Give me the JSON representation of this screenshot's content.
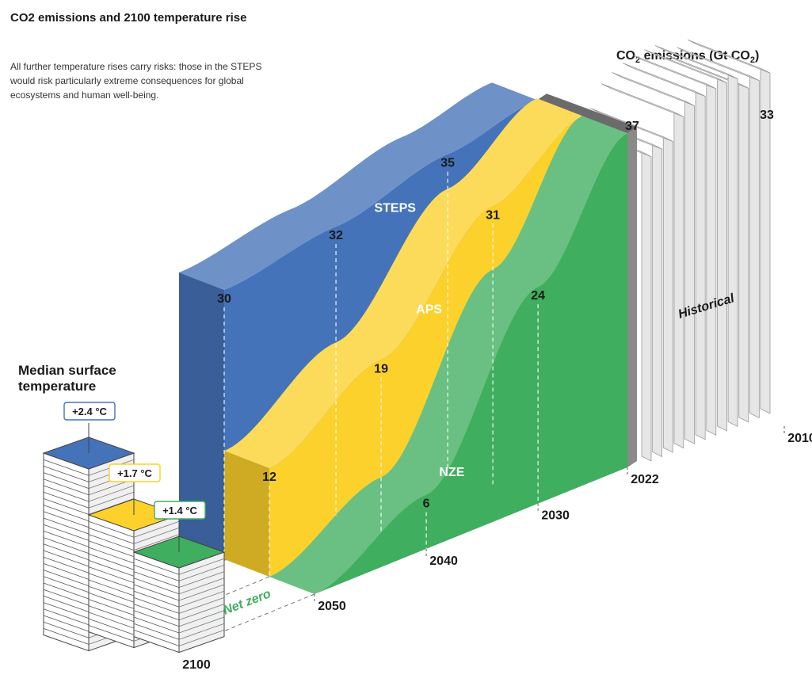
{
  "title": "CO2 emissions and 2100 temperature rise",
  "subtitle": "All further temperature rises carry risks: those in the STEPS would risk particularly extreme consequences for global ecosystems and human well-being.",
  "temperature_panel": {
    "title": "Median surface temperature",
    "year_label": "2100"
  },
  "unit_label": {
    "prefix": "CO",
    "sub": "2",
    "mid": " emissions (Gt CO",
    "sub2": "2",
    "suffix": ")"
  },
  "colors": {
    "steps": "#4573b9",
    "aps": "#fdd12b",
    "nze": "#3fae5f",
    "historical": "#f4f4f4"
  },
  "chart_data": {
    "type": "area",
    "x_ticks": [
      "2010",
      "2022",
      "2030",
      "2040",
      "2050"
    ],
    "historical": {
      "name": "Historical",
      "points": [
        {
          "year": 2010,
          "value": 33
        },
        {
          "year": 2022,
          "value": 37
        }
      ]
    },
    "series": [
      {
        "name": "STEPS",
        "points": [
          {
            "year": 2022,
            "value": 37
          },
          {
            "year": 2030,
            "value": 35
          },
          {
            "year": 2040,
            "value": 32
          },
          {
            "year": 2050,
            "value": 30
          }
        ],
        "temperature_2100": "+2.4 °C"
      },
      {
        "name": "APS",
        "points": [
          {
            "year": 2022,
            "value": 37
          },
          {
            "year": 2030,
            "value": 31
          },
          {
            "year": 2040,
            "value": 19
          },
          {
            "year": 2050,
            "value": 12
          }
        ],
        "temperature_2100": "+1.7 °C"
      },
      {
        "name": "NZE",
        "points": [
          {
            "year": 2022,
            "value": 37
          },
          {
            "year": 2030,
            "value": 24
          },
          {
            "year": 2040,
            "value": 6
          },
          {
            "year": 2050,
            "value": 0
          }
        ],
        "temperature_2100": "+1.4 °C"
      }
    ],
    "annotations": [
      "Net zero"
    ]
  }
}
